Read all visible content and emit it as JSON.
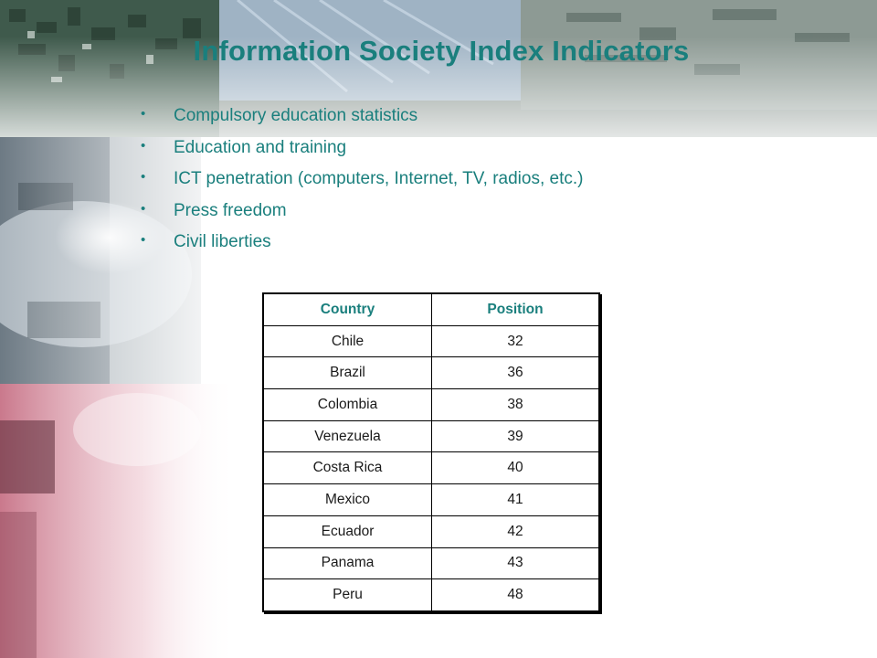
{
  "slide": {
    "title": "Information Society Index Indicators",
    "bullets": [
      "Compulsory education statistics",
      "Education and training",
      "ICT penetration (computers, Internet, TV, radios, etc.)",
      "Press freedom",
      "Civil liberties"
    ]
  },
  "table": {
    "headers": [
      "Country",
      "Position"
    ],
    "rows": [
      [
        "Chile",
        "32"
      ],
      [
        "Brazil",
        "36"
      ],
      [
        "Colombia",
        "38"
      ],
      [
        "Venezuela",
        "39"
      ],
      [
        "Costa Rica",
        "40"
      ],
      [
        "Mexico",
        "41"
      ],
      [
        "Ecuador",
        "42"
      ],
      [
        "Panama",
        "43"
      ],
      [
        "Peru",
        "48"
      ]
    ]
  },
  "colors": {
    "accent": "#1a7f7d",
    "text": "#1a1a1a",
    "border": "#000000"
  }
}
